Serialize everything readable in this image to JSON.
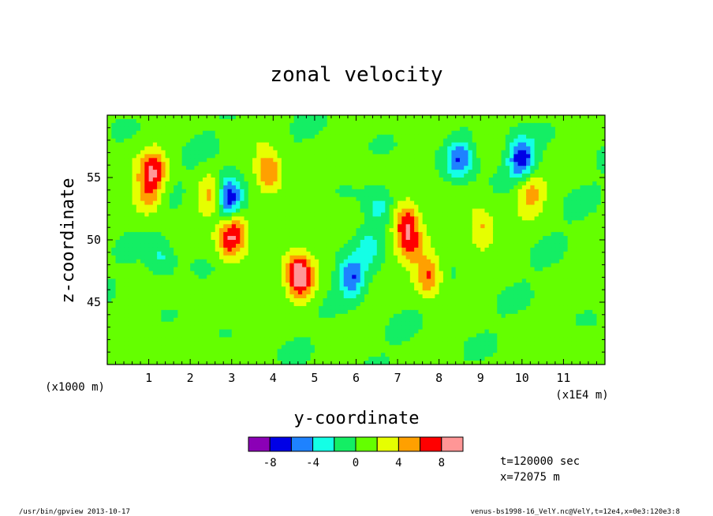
{
  "chart_data": {
    "type": "heatmap",
    "title": "zonal velocity",
    "xlabel": "y-coordinate",
    "ylabel": "z-coordinate",
    "x_unit_label": "(x1E4 m)",
    "y_unit_label": "(x1000 m)",
    "xlim": [
      0,
      12
    ],
    "ylim": [
      40,
      60
    ],
    "x_ticks": [
      1,
      2,
      3,
      4,
      5,
      6,
      7,
      8,
      9,
      10,
      11
    ],
    "x_tick_labels": [
      "1",
      "2",
      "3",
      "4",
      "5",
      "6",
      "7",
      "8",
      "9",
      "10",
      "11"
    ],
    "y_ticks": [
      45,
      50,
      55
    ],
    "y_tick_labels": [
      "45",
      "50",
      "55"
    ],
    "colorbar": {
      "levels": [
        -10,
        -8,
        -6,
        -4,
        -2,
        0,
        2,
        4,
        6,
        8,
        10
      ],
      "colors": [
        "#8b00b6",
        "#0000e6",
        "#1e82ff",
        "#14ffe6",
        "#14ee64",
        "#64ff00",
        "#e6ff00",
        "#ffa000",
        "#ff0000",
        "#ff9696"
      ],
      "tick_values": [
        -8,
        -4,
        0,
        4,
        8
      ],
      "tick_labels": [
        "-8",
        "-4",
        "0",
        "4",
        "8"
      ]
    },
    "features": [
      {
        "y": 1.1,
        "z": 55.5,
        "value": 6.5
      },
      {
        "y": 1.0,
        "z": 53.5,
        "value": 4.5
      },
      {
        "y": 2.55,
        "z": 53.5,
        "value": 4.5
      },
      {
        "y": 2.9,
        "z": 54.0,
        "value": -4.5
      },
      {
        "y": 2.95,
        "z": 53.0,
        "value": -6.5
      },
      {
        "y": 2.95,
        "z": 50.0,
        "value": 6.5
      },
      {
        "y": 3.1,
        "z": 51.5,
        "value": 4.5
      },
      {
        "y": 3.9,
        "z": 55.5,
        "value": 6.5
      },
      {
        "y": 4.6,
        "z": 47.5,
        "value": 6.5
      },
      {
        "y": 4.7,
        "z": 46.5,
        "value": 4.5
      },
      {
        "y": 5.9,
        "z": 47.0,
        "value": -6.5
      },
      {
        "y": 6.3,
        "z": 49.5,
        "value": -3.0
      },
      {
        "y": 7.2,
        "z": 51.5,
        "value": 6.5
      },
      {
        "y": 7.3,
        "z": 49.5,
        "value": 4.5
      },
      {
        "y": 8.5,
        "z": 56.5,
        "value": -6.5
      },
      {
        "y": 10.0,
        "z": 56.5,
        "value": -8.5
      },
      {
        "y": 1.3,
        "z": 48.5,
        "value": -3.0
      },
      {
        "y": 6.55,
        "z": 52.5,
        "value": -3.0
      },
      {
        "y": 9.0,
        "z": 51.0,
        "value": 4.5
      },
      {
        "y": 10.2,
        "z": 54.0,
        "value": 4.5
      },
      {
        "y": 7.75,
        "z": 47.0,
        "value": 6.5
      }
    ]
  },
  "annotations": {
    "time": "t=120000 sec",
    "position": "x=72075 m",
    "footer_left": "/usr/bin/gpview  2013-10-17",
    "footer_right": "venus-bs1998-16_VelY.nc@VelY,t=12e4,x=0e3:120e3:8"
  }
}
